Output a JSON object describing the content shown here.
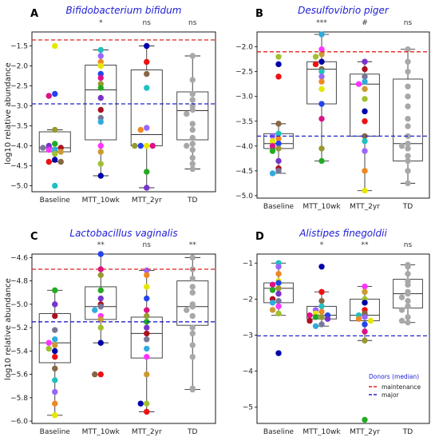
{
  "figure": {
    "ylabel": "log10 relative abundance",
    "legend": {
      "title": "Donors (median)",
      "items": [
        {
          "label": "maintenance",
          "color": "#e02020"
        },
        {
          "label": "major",
          "color": "#2222cc"
        }
      ]
    },
    "categories": [
      "Baseline",
      "MTT_10wk",
      "MTT_2yr",
      "TD"
    ]
  },
  "chart_data": [
    {
      "type": "box",
      "letter": "A",
      "title": "Bifidobacterium bifidum",
      "categories": [
        "Baseline",
        "MTT_10wk",
        "MTT_2yr",
        "TD"
      ],
      "significance": [
        "",
        "*",
        "ns",
        "ns"
      ],
      "ylim": [
        -5.15,
        -1.15
      ],
      "yticks": [
        -5.0,
        -4.5,
        -4.0,
        -3.5,
        -3.0,
        -2.5,
        -2.0,
        -1.5
      ],
      "ytick_labels": [
        "−5.0",
        "−4.5",
        "−4.0",
        "−3.5",
        "−3.0",
        "−2.5",
        "−2.0",
        "−1.5"
      ],
      "donor_lines": {
        "maintenance": -1.35,
        "major": -2.95
      },
      "boxes": [
        {
          "q1": -4.15,
          "median": -4.05,
          "q3": -3.65,
          "whislo": -4.4,
          "whishi": -3.6
        },
        {
          "q1": -3.85,
          "median": -2.6,
          "q3": -1.98,
          "whislo": -4.75,
          "whishi": -1.6
        },
        {
          "q1": -4.0,
          "median": -3.72,
          "q3": -2.1,
          "whislo": -5.05,
          "whishi": -1.5
        },
        {
          "q1": -3.85,
          "median": -3.12,
          "q3": -2.65,
          "whislo": -4.58,
          "whishi": -1.75
        }
      ],
      "points": [
        [
          -1.5,
          -2.7,
          -2.75,
          -3.6,
          -3.95,
          -4.0,
          -4.05,
          -4.05,
          -4.1,
          -4.1,
          -4.15,
          -4.2,
          -4.35,
          -4.4,
          -4.4,
          -5.0
        ],
        [
          -1.6,
          -1.75,
          -1.9,
          -2.0,
          -2.2,
          -2.3,
          -2.45,
          -2.55,
          -2.8,
          -3.1,
          -3.3,
          -3.4,
          -4.0,
          -4.15,
          -4.45,
          -4.75
        ],
        [
          -1.5,
          -1.9,
          -2.2,
          -2.55,
          -3.55,
          -3.6,
          -4.0,
          -4.0,
          -4.0,
          -4.0,
          -4.65,
          -5.05
        ],
        [
          -1.75,
          -2.35,
          -2.7,
          -2.85,
          -3.0,
          -3.1,
          -3.2,
          -3.45,
          -3.6,
          -3.8,
          -3.95,
          -4.0,
          -4.1,
          -4.3,
          -4.45,
          -4.58
        ]
      ]
    },
    {
      "type": "box",
      "letter": "B",
      "title": "Desulfovibrio piger",
      "categories": [
        "Baseline",
        "MTT_10wk",
        "MTT_2yr",
        "TD"
      ],
      "significance": [
        "",
        "***",
        "#",
        "ns"
      ],
      "ylim": [
        -5.05,
        -1.7
      ],
      "yticks": [
        -5.0,
        -4.5,
        -4.0,
        -3.5,
        -3.0,
        -2.5,
        -2.0
      ],
      "ytick_labels": [
        "−5.0",
        "−4.5",
        "−4.0",
        "−3.5",
        "−3.0",
        "−2.5",
        "−2.0"
      ],
      "donor_lines": {
        "maintenance": -2.1,
        "major": -3.8
      },
      "boxes": [
        {
          "q1": -4.05,
          "median": -3.95,
          "q3": -3.75,
          "whislo": -4.55,
          "whishi": -3.55
        },
        {
          "q1": -3.15,
          "median": -2.45,
          "q3": -2.3,
          "whislo": -4.3,
          "whishi": -1.75
        },
        {
          "q1": -3.8,
          "median": -2.75,
          "q3": -2.55,
          "whislo": -4.9,
          "whishi": -2.3
        },
        {
          "q1": -4.3,
          "median": -3.95,
          "q3": -2.65,
          "whislo": -4.75,
          "whishi": -2.05
        }
      ],
      "points": [
        [
          -2.2,
          -2.35,
          -2.6,
          -3.55,
          -3.75,
          -3.8,
          -3.85,
          -3.9,
          -3.95,
          -4.0,
          -4.05,
          -4.1,
          -4.3,
          -4.45,
          -4.5,
          -4.55
        ],
        [
          -1.75,
          -2.05,
          -2.15,
          -2.2,
          -2.3,
          -2.35,
          -2.45,
          -2.5,
          -2.6,
          -2.7,
          -2.85,
          -3.15,
          -3.45,
          -4.05,
          -4.3
        ],
        [
          -2.3,
          -2.45,
          -2.6,
          -2.7,
          -2.75,
          -2.85,
          -3.05,
          -3.3,
          -3.5,
          -3.8,
          -3.9,
          -4.1,
          -4.5,
          -4.9
        ],
        [
          -2.05,
          -2.3,
          -2.5,
          -2.8,
          -3.0,
          -3.2,
          -3.45,
          -3.6,
          -3.8,
          -3.95,
          -4.0,
          -4.05,
          -4.2,
          -4.3,
          -4.5,
          -4.75
        ]
      ]
    },
    {
      "type": "box",
      "letter": "C",
      "title": "Lactobacillus vaginalis",
      "categories": [
        "Baseline",
        "MTT_10wk",
        "MTT_2yr",
        "TD"
      ],
      "significance": [
        "",
        "**",
        "ns",
        "**"
      ],
      "ylim": [
        -6.02,
        -4.57
      ],
      "yticks": [
        -6.0,
        -5.8,
        -5.6,
        -5.4,
        -5.2,
        -5.0,
        -4.8,
        -4.6
      ],
      "ytick_labels": [
        "−6.0",
        "−5.8",
        "−5.6",
        "−5.4",
        "−5.2",
        "−5.0",
        "−4.8",
        "−4.6"
      ],
      "donor_lines": {
        "maintenance": -4.7,
        "major": -5.15
      },
      "boxes": [
        {
          "q1": -5.5,
          "median": -5.33,
          "q3": -5.08,
          "whislo": -5.95,
          "whishi": -4.88
        },
        {
          "q1": -5.13,
          "median": -5.02,
          "q3": -4.85,
          "whislo": -5.33,
          "whishi": -4.57
        },
        {
          "q1": -5.46,
          "median": -5.25,
          "q3": -5.11,
          "whislo": -5.92,
          "whishi": -4.71
        },
        {
          "q1": -5.18,
          "median": -5.02,
          "q3": -4.8,
          "whislo": -5.73,
          "whishi": -4.6
        }
      ],
      "points": [
        [
          -4.88,
          -5.0,
          -5.1,
          -5.22,
          -5.3,
          -5.33,
          -5.35,
          -5.38,
          -5.4,
          -5.45,
          -5.55,
          -5.65,
          -5.75,
          -5.85,
          -5.95
        ],
        [
          -4.57,
          -4.7,
          -4.75,
          -4.88,
          -4.95,
          -5.0,
          -5.02,
          -5.05,
          -5.1,
          -5.13,
          -5.2,
          -5.33,
          -5.6,
          -5.6
        ],
        [
          -4.71,
          -4.75,
          -4.85,
          -4.95,
          -5.05,
          -5.1,
          -5.15,
          -5.2,
          -5.25,
          -5.3,
          -5.38,
          -5.45,
          -5.6,
          -5.85,
          -5.85,
          -5.92
        ],
        [
          -4.6,
          -4.7,
          -4.78,
          -4.85,
          -4.9,
          -5.0,
          -5.02,
          -5.05,
          -5.1,
          -5.2,
          -5.25,
          -5.35,
          -5.45,
          -5.72,
          -5.73
        ]
      ]
    },
    {
      "type": "box",
      "letter": "D",
      "title": "Alistipes finegoldii",
      "categories": [
        "Baseline",
        "MTT_10wk",
        "MTT_2yr",
        "TD"
      ],
      "significance": [
        "",
        "*",
        "**",
        "ns"
      ],
      "ylim": [
        -5.45,
        -0.75
      ],
      "yticks": [
        -5,
        -4,
        -3,
        -2,
        -1
      ],
      "ytick_labels": [
        "−5",
        "−4",
        "−3",
        "−2",
        "−1"
      ],
      "donor_lines": {
        "maintenance": null,
        "major": -3.02
      },
      "boxes": [
        {
          "q1": -2.1,
          "median": -1.7,
          "q3": -1.55,
          "whislo": -2.45,
          "whishi": -1.0
        },
        {
          "q1": -2.55,
          "median": -2.45,
          "q3": -2.2,
          "whislo": -2.75,
          "whishi": -1.8
        },
        {
          "q1": -2.6,
          "median": -2.45,
          "q3": -2.0,
          "whislo": -3.15,
          "whishi": -1.65
        },
        {
          "q1": -2.25,
          "median": -1.85,
          "q3": -1.45,
          "whislo": -2.65,
          "whishi": -1.05
        }
      ],
      "points": [
        [
          -1.0,
          -1.1,
          -1.3,
          -1.5,
          -1.55,
          -1.6,
          -1.7,
          -1.75,
          -1.85,
          -2.0,
          -2.05,
          -2.1,
          -2.2,
          -2.3,
          -2.4,
          -3.5
        ],
        [
          -1.1,
          -1.8,
          -2.05,
          -2.2,
          -2.3,
          -2.35,
          -2.4,
          -2.45,
          -2.45,
          -2.5,
          -2.5,
          -2.55,
          -2.6,
          -2.7,
          -2.75
        ],
        [
          -1.65,
          -1.8,
          -2.0,
          -2.1,
          -2.3,
          -2.4,
          -2.45,
          -2.5,
          -2.55,
          -2.6,
          -2.7,
          -2.9,
          -3.15,
          -5.35
        ],
        [
          -1.05,
          -1.1,
          -1.3,
          -1.5,
          -1.6,
          -1.8,
          -1.85,
          -1.95,
          -2.05,
          -2.2,
          -2.3,
          -2.5,
          -2.6,
          -2.65
        ]
      ]
    }
  ]
}
